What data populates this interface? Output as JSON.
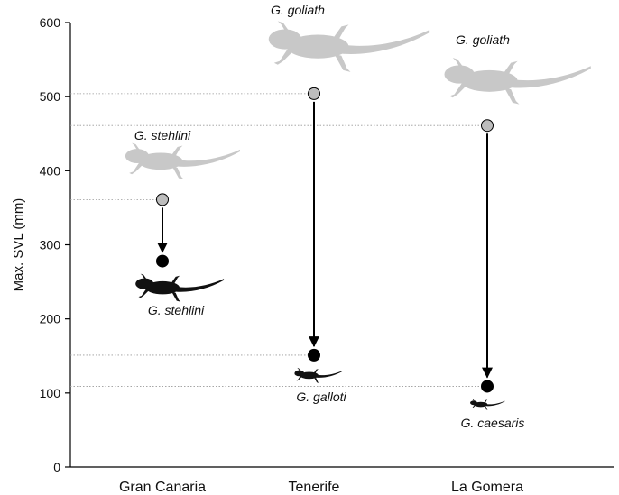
{
  "chart_data": {
    "type": "scatter",
    "ylabel": "Max. SVL (mm)",
    "xlabel": "",
    "title": "",
    "ylim": [
      0,
      600
    ],
    "yticks": [
      "0",
      "100",
      "200",
      "300",
      "400",
      "500",
      "600"
    ],
    "categories": [
      "Gran Canaria",
      "Tenerife",
      "La Gomera"
    ],
    "grid": false,
    "colors": {
      "ancestral": "#bdbdbd",
      "current": "#000000",
      "silhouette_gray": "#c8c8c8",
      "silhouette_black": "#111111"
    },
    "series": [
      {
        "name": "",
        "values": [
          361,
          504,
          461
        ]
      },
      {
        "name": "",
        "values": [
          278,
          151,
          109
        ]
      }
    ],
    "annotations": {
      "top_labels": [
        "G. stehlini",
        "G. goliath",
        "G. goliath"
      ],
      "bottom_labels": [
        "G. stehlini",
        "G. galloti",
        "G. caesaris"
      ]
    }
  }
}
